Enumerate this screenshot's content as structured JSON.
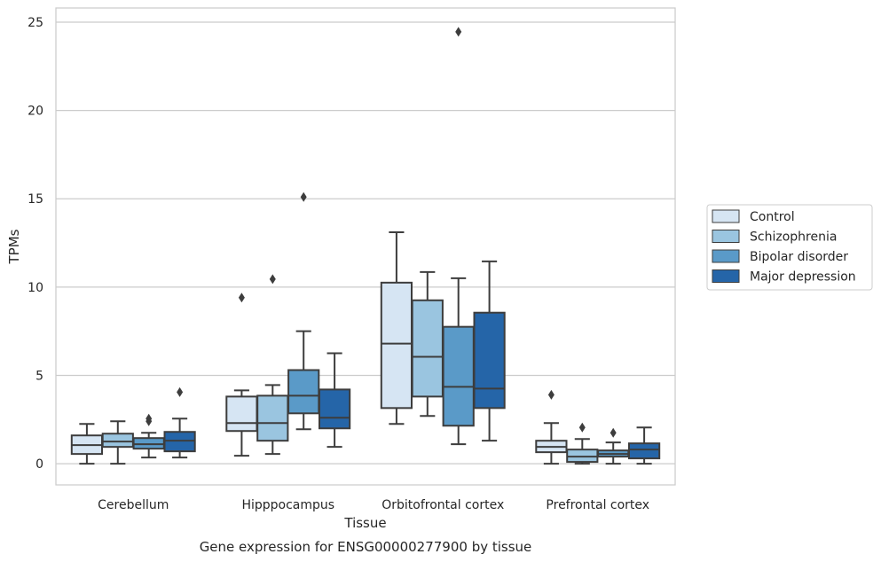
{
  "caption": "Gene expression for ENSG00000277900 by tissue",
  "chart_data": {
    "type": "box",
    "title": "",
    "xlabel": "Tissue",
    "ylabel": "TPMs",
    "ylim": [
      -1.2,
      25.8
    ],
    "yticks": [
      0,
      5,
      10,
      15,
      20,
      25
    ],
    "grid": "horizontal",
    "legend_position": "right-center",
    "categories": [
      "Cerebellum",
      "Hipppocampus",
      "Orbitofrontal cortex",
      "Prefrontal cortex"
    ],
    "series": [
      {
        "name": "Control",
        "color": "#d6e5f3",
        "boxes": [
          {
            "whisker_low": 0.0,
            "q1": 0.55,
            "median": 1.05,
            "q3": 1.6,
            "whisker_high": 2.25,
            "outliers": []
          },
          {
            "whisker_low": 0.45,
            "q1": 1.85,
            "median": 2.3,
            "q3": 3.8,
            "whisker_high": 4.15,
            "outliers": [
              9.4
            ]
          },
          {
            "whisker_low": 2.25,
            "q1": 3.15,
            "median": 6.8,
            "q3": 10.25,
            "whisker_high": 13.1,
            "outliers": []
          },
          {
            "whisker_low": 0.0,
            "q1": 0.65,
            "median": 0.95,
            "q3": 1.3,
            "whisker_high": 2.3,
            "outliers": [
              3.9
            ]
          }
        ]
      },
      {
        "name": "Schizophrenia",
        "color": "#9ac5e0",
        "boxes": [
          {
            "whisker_low": 0.0,
            "q1": 0.95,
            "median": 1.25,
            "q3": 1.7,
            "whisker_high": 2.4,
            "outliers": []
          },
          {
            "whisker_low": 0.55,
            "q1": 1.3,
            "median": 2.3,
            "q3": 3.85,
            "whisker_high": 4.45,
            "outliers": [
              10.45
            ]
          },
          {
            "whisker_low": 2.7,
            "q1": 3.8,
            "median": 6.05,
            "q3": 9.25,
            "whisker_high": 10.85,
            "outliers": []
          },
          {
            "whisker_low": 0.0,
            "q1": 0.1,
            "median": 0.4,
            "q3": 0.8,
            "whisker_high": 1.4,
            "outliers": [
              2.05
            ]
          }
        ]
      },
      {
        "name": "Bipolar disorder",
        "color": "#5a9ac8",
        "boxes": [
          {
            "whisker_low": 0.35,
            "q1": 0.85,
            "median": 1.1,
            "q3": 1.45,
            "whisker_high": 1.75,
            "outliers": [
              2.4,
              2.55
            ]
          },
          {
            "whisker_low": 1.95,
            "q1": 2.85,
            "median": 3.85,
            "q3": 5.3,
            "whisker_high": 7.5,
            "outliers": [
              15.1
            ]
          },
          {
            "whisker_low": 1.1,
            "q1": 2.15,
            "median": 4.35,
            "q3": 7.75,
            "whisker_high": 10.5,
            "outliers": [
              24.45
            ]
          },
          {
            "whisker_low": 0.0,
            "q1": 0.4,
            "median": 0.55,
            "q3": 0.75,
            "whisker_high": 1.2,
            "outliers": [
              1.75
            ]
          }
        ]
      },
      {
        "name": "Major depression",
        "color": "#2565a8",
        "boxes": [
          {
            "whisker_low": 0.35,
            "q1": 0.7,
            "median": 1.3,
            "q3": 1.8,
            "whisker_high": 2.55,
            "outliers": [
              4.05
            ]
          },
          {
            "whisker_low": 0.95,
            "q1": 2.0,
            "median": 2.6,
            "q3": 4.2,
            "whisker_high": 6.25,
            "outliers": []
          },
          {
            "whisker_low": 1.3,
            "q1": 3.15,
            "median": 4.25,
            "q3": 8.55,
            "whisker_high": 11.45,
            "outliers": []
          },
          {
            "whisker_low": 0.0,
            "q1": 0.3,
            "median": 0.8,
            "q3": 1.15,
            "whisker_high": 2.05,
            "outliers": []
          }
        ]
      }
    ]
  }
}
